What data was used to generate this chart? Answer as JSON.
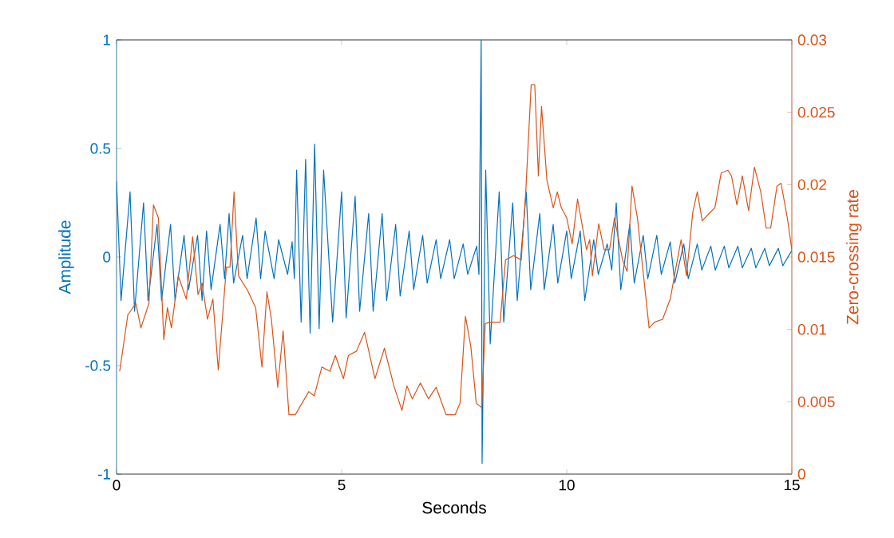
{
  "chart_data": {
    "type": "line",
    "xlabel": "Seconds",
    "ylabel": "Amplitude",
    "y2label": "Zero-crossing rate",
    "xlim": [
      0,
      15
    ],
    "xticks": [
      0,
      5,
      10,
      15
    ],
    "ylim": [
      -1,
      1
    ],
    "yticks": [
      -1,
      -0.5,
      0,
      0.5,
      1
    ],
    "y2lim": [
      0,
      0.03
    ],
    "y2ticks": [
      0,
      0.005,
      0.01,
      0.015,
      0.02,
      0.025,
      0.03
    ],
    "series": [
      {
        "color": "#0072bd",
        "x": [
          0.0,
          0.1,
          0.3,
          0.4,
          0.6,
          0.7,
          0.9,
          1.0,
          1.2,
          1.3,
          1.5,
          1.6,
          1.8,
          1.9,
          2.0,
          2.1,
          2.3,
          2.4,
          2.5,
          2.6,
          2.8,
          2.9,
          3.1,
          3.2,
          3.3,
          3.5,
          3.6,
          3.8,
          3.9,
          3.95,
          4.0,
          4.1,
          4.2,
          4.3,
          4.4,
          4.5,
          4.6,
          4.8,
          5.0,
          5.1,
          5.3,
          5.4,
          5.6,
          5.7,
          5.9,
          6.0,
          6.2,
          6.3,
          6.5,
          6.6,
          6.8,
          6.9,
          7.1,
          7.2,
          7.4,
          7.5,
          7.7,
          7.8,
          8.0,
          8.05,
          8.1,
          8.12,
          8.2,
          8.3,
          8.5,
          8.6,
          8.8,
          8.9,
          9.1,
          9.2,
          9.4,
          9.5,
          9.7,
          9.8,
          10.0,
          10.1,
          10.3,
          10.4,
          10.6,
          10.7,
          10.9,
          11.0,
          11.1,
          11.2,
          11.4,
          11.5,
          11.7,
          11.8,
          12.0,
          12.1,
          12.3,
          12.4,
          12.6,
          12.7,
          12.9,
          13.0,
          13.2,
          13.3,
          13.5,
          13.6,
          13.8,
          13.9,
          14.1,
          14.2,
          14.4,
          14.5,
          14.7,
          14.8,
          15.0
        ],
        "values": [
          0.35,
          -0.2,
          0.3,
          -0.25,
          0.25,
          -0.2,
          0.15,
          -0.2,
          0.15,
          -0.2,
          0.1,
          -0.15,
          0.1,
          -0.2,
          0.12,
          -0.15,
          0.15,
          -0.1,
          0.2,
          -0.12,
          0.1,
          -0.1,
          0.18,
          -0.1,
          0.12,
          -0.1,
          0.08,
          -0.08,
          0.07,
          -0.1,
          0.4,
          -0.3,
          0.45,
          -0.35,
          0.52,
          -0.33,
          0.4,
          -0.3,
          0.3,
          -0.28,
          0.28,
          -0.25,
          0.2,
          -0.25,
          0.2,
          -0.2,
          0.15,
          -0.18,
          0.12,
          -0.15,
          0.1,
          -0.12,
          0.08,
          -0.1,
          0.08,
          -0.1,
          0.06,
          -0.08,
          0.05,
          -0.08,
          1.0,
          -0.95,
          0.4,
          -0.4,
          0.3,
          -0.3,
          0.25,
          -0.2,
          0.3,
          -0.15,
          0.2,
          -0.15,
          0.15,
          -0.12,
          0.12,
          -0.1,
          0.12,
          -0.2,
          0.08,
          -0.08,
          0.06,
          -0.06,
          0.25,
          -0.15,
          0.15,
          -0.12,
          0.1,
          -0.1,
          0.1,
          -0.08,
          0.07,
          -0.12,
          0.06,
          -0.1,
          0.06,
          -0.06,
          0.05,
          -0.06,
          0.05,
          -0.05,
          0.05,
          -0.05,
          0.04,
          -0.05,
          0.04,
          -0.04,
          0.04,
          -0.04,
          0.03
        ]
      },
      {
        "color": "#d95319",
        "axis": "y2",
        "x": [
          0.07,
          0.25,
          0.43,
          0.54,
          0.72,
          0.82,
          0.93,
          1.05,
          1.13,
          1.22,
          1.37,
          1.55,
          1.69,
          1.81,
          1.9,
          2.02,
          2.14,
          2.26,
          2.44,
          2.52,
          2.61,
          2.71,
          2.91,
          3.09,
          3.23,
          3.34,
          3.44,
          3.58,
          3.7,
          3.83,
          3.97,
          4.27,
          4.39,
          4.56,
          4.74,
          4.86,
          5.04,
          5.15,
          5.33,
          5.51,
          5.74,
          5.95,
          6.16,
          6.34,
          6.45,
          6.57,
          6.75,
          6.93,
          7.1,
          7.32,
          7.52,
          7.63,
          7.75,
          7.87,
          7.99,
          8.11,
          8.19,
          8.29,
          8.52,
          8.64,
          8.82,
          8.99,
          9.09,
          9.21,
          9.29,
          9.37,
          9.44,
          9.56,
          9.7,
          9.79,
          9.88,
          10.0,
          10.12,
          10.24,
          10.44,
          10.51,
          10.57,
          10.71,
          10.83,
          10.95,
          11.06,
          11.24,
          11.34,
          11.45,
          11.57,
          11.83,
          11.95,
          12.13,
          12.3,
          12.41,
          12.54,
          12.66,
          12.8,
          12.9,
          13.01,
          13.19,
          13.29,
          13.43,
          13.58,
          13.66,
          13.78,
          13.9,
          14.04,
          14.17,
          14.31,
          14.43,
          14.53,
          14.67,
          14.76,
          14.9,
          15.0
        ],
        "values": [
          0.0071,
          0.011,
          0.0118,
          0.0101,
          0.0118,
          0.0186,
          0.0177,
          0.0093,
          0.0115,
          0.0101,
          0.0137,
          0.0121,
          0.0164,
          0.0124,
          0.0132,
          0.0107,
          0.0121,
          0.0072,
          0.0143,
          0.0143,
          0.0195,
          0.0137,
          0.0127,
          0.0115,
          0.0074,
          0.0126,
          0.0107,
          0.006,
          0.0099,
          0.0041,
          0.0041,
          0.0057,
          0.0054,
          0.0074,
          0.0071,
          0.0082,
          0.0066,
          0.0082,
          0.0085,
          0.0098,
          0.0066,
          0.0087,
          0.0061,
          0.0044,
          0.0061,
          0.0052,
          0.0063,
          0.0052,
          0.006,
          0.0041,
          0.0041,
          0.0049,
          0.0109,
          0.0088,
          0.0049,
          0.0046,
          0.0104,
          0.0105,
          0.0105,
          0.0148,
          0.0151,
          0.0148,
          0.0195,
          0.0269,
          0.0269,
          0.0206,
          0.0254,
          0.0203,
          0.0184,
          0.0195,
          0.0184,
          0.0177,
          0.0159,
          0.019,
          0.0155,
          0.0162,
          0.0137,
          0.0173,
          0.0155,
          0.0155,
          0.0177,
          0.0148,
          0.014,
          0.0199,
          0.0177,
          0.0101,
          0.0105,
          0.0107,
          0.0121,
          0.014,
          0.0162,
          0.0137,
          0.0181,
          0.0195,
          0.0175,
          0.0181,
          0.0184,
          0.0208,
          0.021,
          0.0206,
          0.0186,
          0.0206,
          0.0182,
          0.0212,
          0.0195,
          0.017,
          0.017,
          0.0199,
          0.0201,
          0.0177,
          0.0155
        ]
      }
    ]
  }
}
